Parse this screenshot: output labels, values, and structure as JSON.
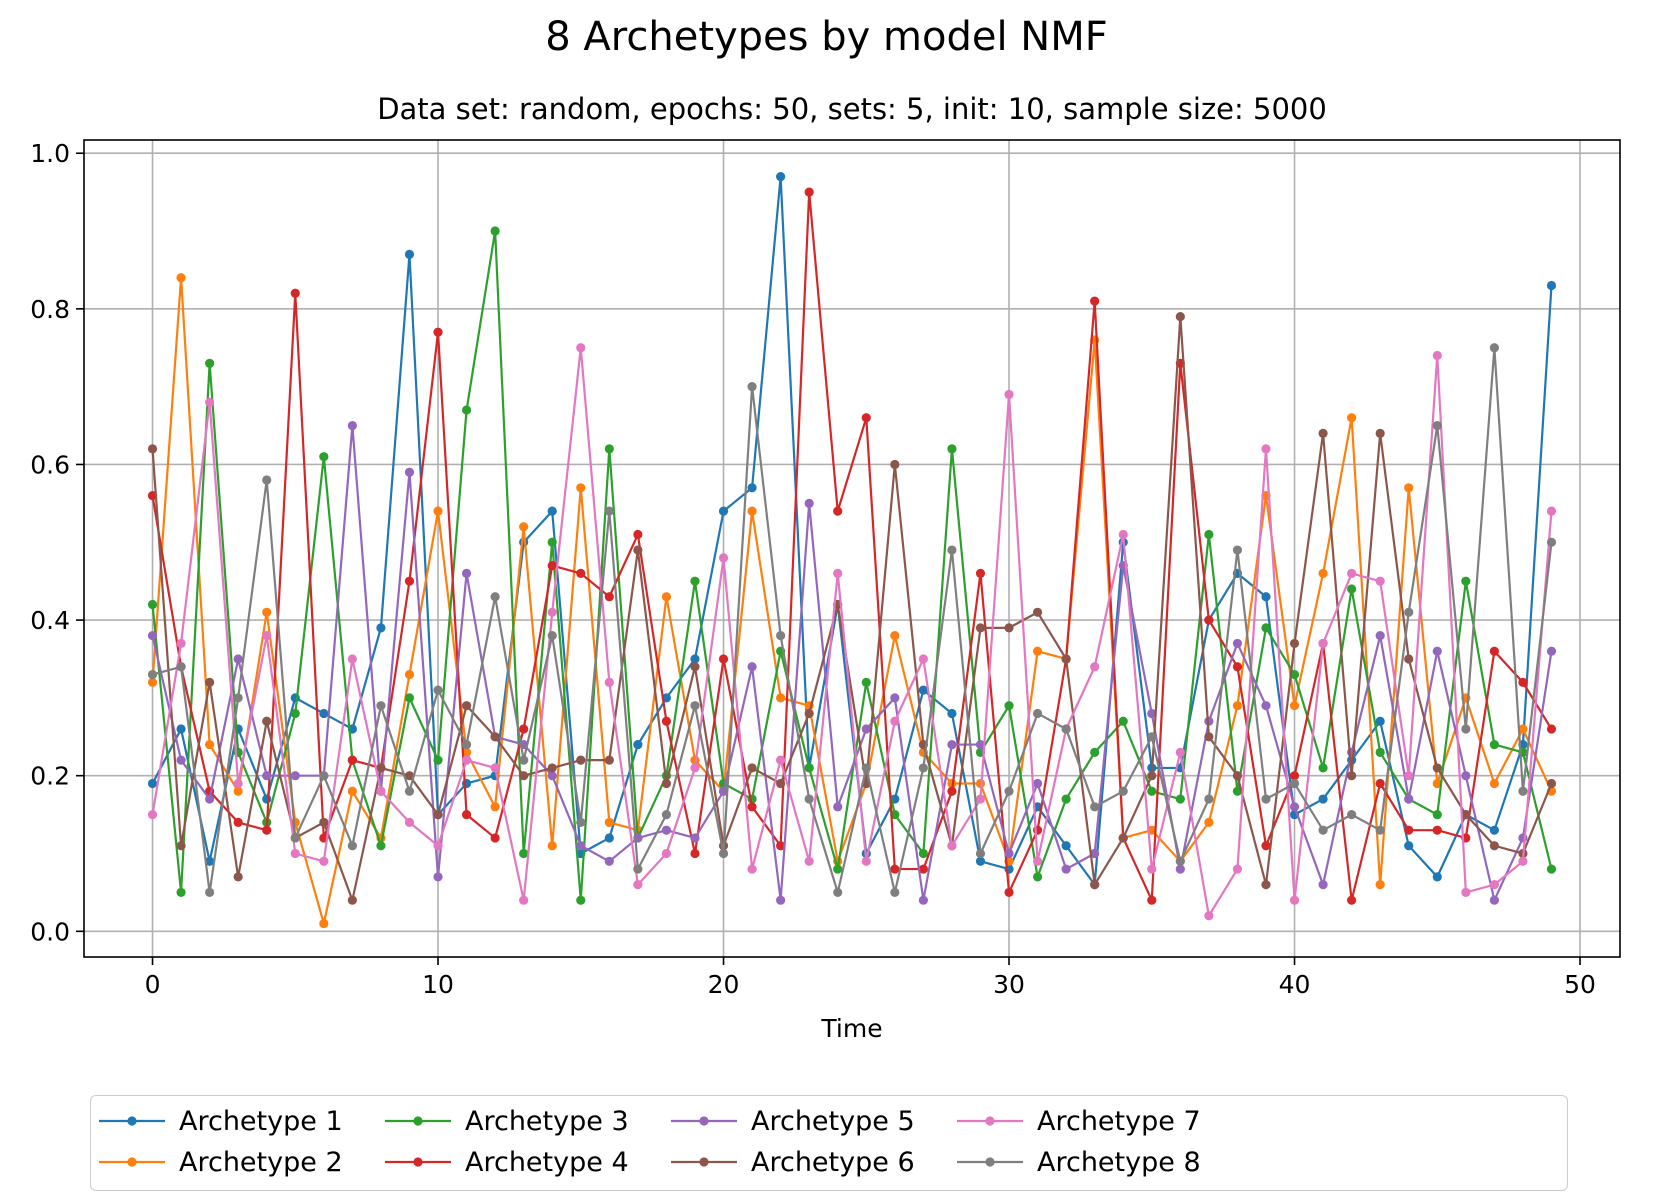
{
  "title": "8 Archetypes by model NMF",
  "subtitle": "Data set: random, epochs: 50, sets: 5, init: 10, sample size: 5000",
  "chart_data": {
    "type": "line",
    "xlabel": "Time",
    "ylabel": "",
    "xlim": [
      -2.4,
      51.4
    ],
    "ylim": [
      -0.033,
      1.017
    ],
    "xticks": [
      0,
      10,
      20,
      30,
      40,
      50
    ],
    "yticks": [
      0.0,
      0.2,
      0.4,
      0.6,
      0.8,
      1.0
    ],
    "xtick_labels": [
      "0",
      "10",
      "20",
      "30",
      "40",
      "50"
    ],
    "ytick_labels": [
      "0.0",
      "0.2",
      "0.4",
      "0.6",
      "0.8",
      "1.0"
    ],
    "grid": true,
    "legend_position": "bottom, outside plot, 5 columns",
    "x": [
      0,
      1,
      2,
      3,
      4,
      5,
      6,
      7,
      8,
      9,
      10,
      11,
      12,
      13,
      14,
      15,
      16,
      17,
      18,
      19,
      20,
      21,
      22,
      23,
      24,
      25,
      26,
      27,
      28,
      29,
      30,
      31,
      32,
      33,
      34,
      35,
      36,
      37,
      38,
      39,
      40,
      41,
      42,
      43,
      44,
      45,
      46,
      47,
      48,
      49
    ],
    "series": [
      {
        "name": "Archetype 1",
        "color": "#1f77b4",
        "values": [
          0.19,
          0.26,
          0.09,
          0.26,
          0.17,
          0.3,
          0.28,
          0.26,
          0.39,
          0.87,
          0.15,
          0.19,
          0.2,
          0.5,
          0.54,
          0.1,
          0.12,
          0.24,
          0.3,
          0.35,
          0.54,
          0.57,
          0.97,
          0.21,
          0.42,
          0.1,
          0.17,
          0.31,
          0.28,
          0.09,
          0.08,
          0.16,
          0.11,
          0.06,
          0.5,
          0.21,
          0.21,
          0.4,
          0.46,
          0.43,
          0.15,
          0.17,
          0.22,
          0.27,
          0.11,
          0.07,
          0.15,
          0.13,
          0.24,
          0.83
        ]
      },
      {
        "name": "Archetype 2",
        "color": "#ff7f0e",
        "values": [
          0.32,
          0.84,
          0.24,
          0.18,
          0.41,
          0.14,
          0.01,
          0.18,
          0.12,
          0.33,
          0.54,
          0.23,
          0.16,
          0.52,
          0.11,
          0.57,
          0.14,
          0.13,
          0.43,
          0.22,
          0.18,
          0.54,
          0.3,
          0.29,
          0.09,
          0.19,
          0.38,
          0.23,
          0.19,
          0.19,
          0.09,
          0.36,
          0.35,
          0.76,
          0.12,
          0.13,
          0.09,
          0.14,
          0.29,
          0.56,
          0.29,
          0.46,
          0.66,
          0.06,
          0.57,
          0.19,
          0.3,
          0.19,
          0.26,
          0.18
        ]
      },
      {
        "name": "Archetype 3",
        "color": "#2ca02c",
        "values": [
          0.42,
          0.05,
          0.73,
          0.23,
          0.14,
          0.28,
          0.61,
          0.22,
          0.11,
          0.3,
          0.22,
          0.67,
          0.9,
          0.1,
          0.5,
          0.04,
          0.62,
          0.12,
          0.2,
          0.45,
          0.19,
          0.17,
          0.36,
          0.21,
          0.08,
          0.32,
          0.15,
          0.1,
          0.62,
          0.23,
          0.29,
          0.07,
          0.17,
          0.23,
          0.27,
          0.18,
          0.17,
          0.51,
          0.18,
          0.39,
          0.33,
          0.21,
          0.44,
          0.23,
          0.17,
          0.15,
          0.45,
          0.24,
          0.23,
          0.08
        ]
      },
      {
        "name": "Archetype 4",
        "color": "#d62728",
        "values": [
          0.56,
          0.34,
          0.18,
          0.14,
          0.13,
          0.82,
          0.12,
          0.22,
          0.21,
          0.45,
          0.77,
          0.15,
          0.12,
          0.26,
          0.47,
          0.46,
          0.43,
          0.51,
          0.27,
          0.1,
          0.35,
          0.16,
          0.11,
          0.95,
          0.54,
          0.66,
          0.08,
          0.08,
          0.18,
          0.46,
          0.05,
          0.13,
          0.35,
          0.81,
          0.12,
          0.04,
          0.73,
          0.4,
          0.34,
          0.11,
          0.2,
          0.37,
          0.04,
          0.19,
          0.13,
          0.13,
          0.12,
          0.36,
          0.32,
          0.26
        ]
      },
      {
        "name": "Archetype 5",
        "color": "#9467bd",
        "values": [
          0.38,
          0.22,
          0.17,
          0.35,
          0.2,
          0.2,
          0.2,
          0.65,
          0.18,
          0.59,
          0.07,
          0.46,
          0.25,
          0.24,
          0.2,
          0.11,
          0.09,
          0.12,
          0.13,
          0.12,
          0.18,
          0.34,
          0.04,
          0.55,
          0.16,
          0.26,
          0.3,
          0.04,
          0.24,
          0.24,
          0.1,
          0.19,
          0.08,
          0.1,
          0.47,
          0.28,
          0.08,
          0.27,
          0.37,
          0.29,
          0.16,
          0.06,
          0.23,
          0.38,
          0.17,
          0.36,
          0.2,
          0.04,
          0.12,
          0.36
        ]
      },
      {
        "name": "Archetype 6",
        "color": "#8c564b",
        "values": [
          0.62,
          0.11,
          0.32,
          0.07,
          0.27,
          0.12,
          0.14,
          0.04,
          0.21,
          0.2,
          0.15,
          0.29,
          0.25,
          0.2,
          0.21,
          0.22,
          0.22,
          0.49,
          0.19,
          0.34,
          0.11,
          0.21,
          0.19,
          0.28,
          0.42,
          0.19,
          0.6,
          0.24,
          0.11,
          0.39,
          0.39,
          0.41,
          0.35,
          0.06,
          0.12,
          0.2,
          0.79,
          0.25,
          0.2,
          0.06,
          0.37,
          0.64,
          0.2,
          0.64,
          0.35,
          0.21,
          0.15,
          0.11,
          0.1,
          0.19
        ]
      },
      {
        "name": "Archetype 7",
        "color": "#e377c2",
        "values": [
          0.15,
          0.37,
          0.68,
          0.19,
          0.38,
          0.1,
          0.09,
          0.35,
          0.18,
          0.14,
          0.11,
          0.22,
          0.21,
          0.04,
          0.41,
          0.75,
          0.32,
          0.06,
          0.1,
          0.21,
          0.48,
          0.08,
          0.22,
          0.09,
          0.46,
          0.09,
          0.27,
          0.35,
          0.11,
          0.17,
          0.69,
          0.09,
          0.26,
          0.34,
          0.51,
          0.08,
          0.23,
          0.02,
          0.08,
          0.62,
          0.04,
          0.37,
          0.46,
          0.45,
          0.2,
          0.74,
          0.05,
          0.06,
          0.09,
          0.54
        ]
      },
      {
        "name": "Archetype 8",
        "color": "#7f7f7f",
        "values": [
          0.33,
          0.34,
          0.05,
          0.3,
          0.58,
          0.12,
          0.2,
          0.11,
          0.29,
          0.18,
          0.31,
          0.24,
          0.43,
          0.22,
          0.38,
          0.14,
          0.54,
          0.08,
          0.15,
          0.29,
          0.1,
          0.7,
          0.38,
          0.17,
          0.05,
          0.21,
          0.05,
          0.21,
          0.49,
          0.1,
          0.18,
          0.28,
          0.26,
          0.16,
          0.18,
          0.25,
          0.09,
          0.17,
          0.49,
          0.17,
          0.19,
          0.13,
          0.15,
          0.13,
          0.41,
          0.65,
          0.26,
          0.75,
          0.18,
          0.5
        ]
      }
    ]
  }
}
